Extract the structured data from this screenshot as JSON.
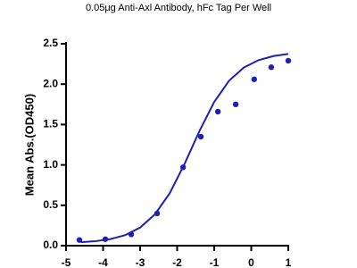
{
  "chart_data": {
    "type": "scatter",
    "title": "0.05μg Anti-Axl Antibody, hFc Tag Per Well",
    "y_label": "Mean Abs.(OD450)",
    "points": {
      "color": "#1f1fb4",
      "x": [
        -4.64,
        -3.94,
        -3.24,
        -2.54,
        -1.84,
        -1.36,
        -0.9,
        -0.42,
        0.08,
        0.54,
        1.0
      ],
      "values": [
        0.07,
        0.08,
        0.14,
        0.4,
        0.97,
        1.35,
        1.66,
        1.75,
        2.06,
        2.21,
        2.29
      ]
    },
    "curve": {
      "color": "#1f1fb4",
      "x": [
        -4.6,
        -4.2,
        -3.8,
        -3.4,
        -3.0,
        -2.6,
        -2.2,
        -1.8,
        -1.4,
        -1.0,
        -0.6,
        -0.2,
        0.2,
        0.6,
        1.0
      ],
      "values": [
        0.043,
        0.056,
        0.082,
        0.131,
        0.224,
        0.388,
        0.65,
        1.013,
        1.418,
        1.779,
        2.042,
        2.206,
        2.298,
        2.348,
        2.374
      ]
    },
    "xlim": [
      -5,
      1
    ],
    "xticks": [
      -5,
      -4,
      -3,
      -2,
      -1,
      0,
      1
    ],
    "ylim": [
      0,
      2.5
    ],
    "yticks": [
      {
        "value": 0,
        "label": "0.0"
      },
      0.5,
      {
        "value": 1,
        "label": "1.0"
      },
      1.5,
      {
        "value": 2,
        "label": "2.0"
      },
      2.5
    ],
    "grid": false
  }
}
